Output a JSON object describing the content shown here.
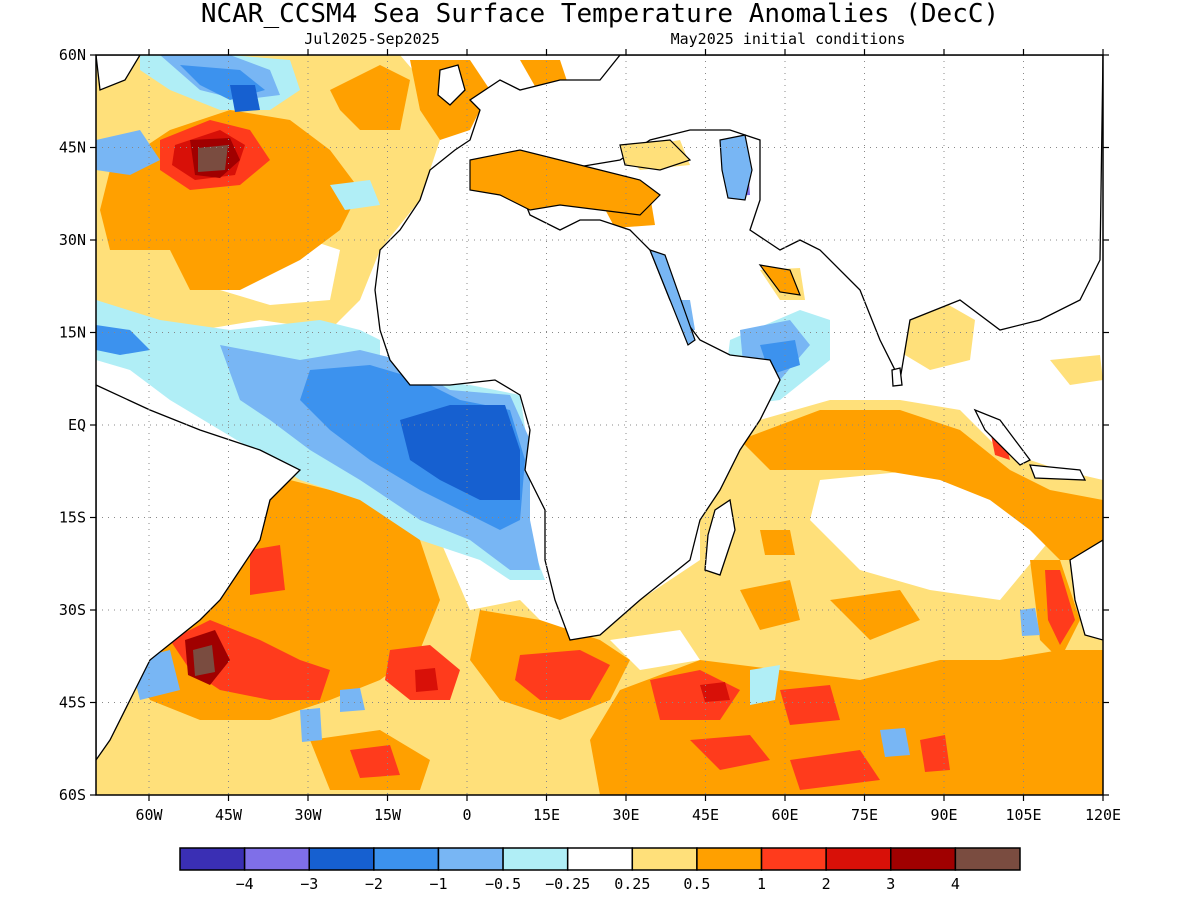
{
  "title": "NCAR_CCSM4 Sea Surface Temperature Anomalies (DecC)",
  "period": "Jul2025-Sep2025",
  "init": "May2025 initial conditions",
  "map": {
    "lat_labels": [
      "60N",
      "45N",
      "30N",
      "15N",
      "EQ",
      "15S",
      "30S",
      "45S",
      "60S"
    ],
    "lat_values": [
      60,
      45,
      30,
      15,
      0,
      -15,
      -30,
      -45,
      -60
    ],
    "lon_labels": [
      "60W",
      "45W",
      "30W",
      "15W",
      "0",
      "15E",
      "30E",
      "45E",
      "60E",
      "75E",
      "90E",
      "105E",
      "120E"
    ],
    "lon_values": [
      -60,
      -45,
      -30,
      -15,
      0,
      15,
      30,
      45,
      60,
      75,
      90,
      105,
      120
    ],
    "lon_range": [
      -70,
      120
    ],
    "lat_range": [
      -60,
      60
    ]
  },
  "colorbar": {
    "colors": [
      "#3a2fb4",
      "#7f6fe8",
      "#1660d0",
      "#3c92ee",
      "#78b6f4",
      "#b0eef6",
      "#ffffff",
      "#ffe07a",
      "#ffa000",
      "#ff3b1c",
      "#d81008",
      "#a00000",
      "#7a4c40"
    ],
    "labels": [
      "−4",
      "−3",
      "−2",
      "−1",
      "−0.5",
      "−0.25",
      "0.25",
      "0.5",
      "1",
      "2",
      "3",
      "4"
    ]
  }
}
